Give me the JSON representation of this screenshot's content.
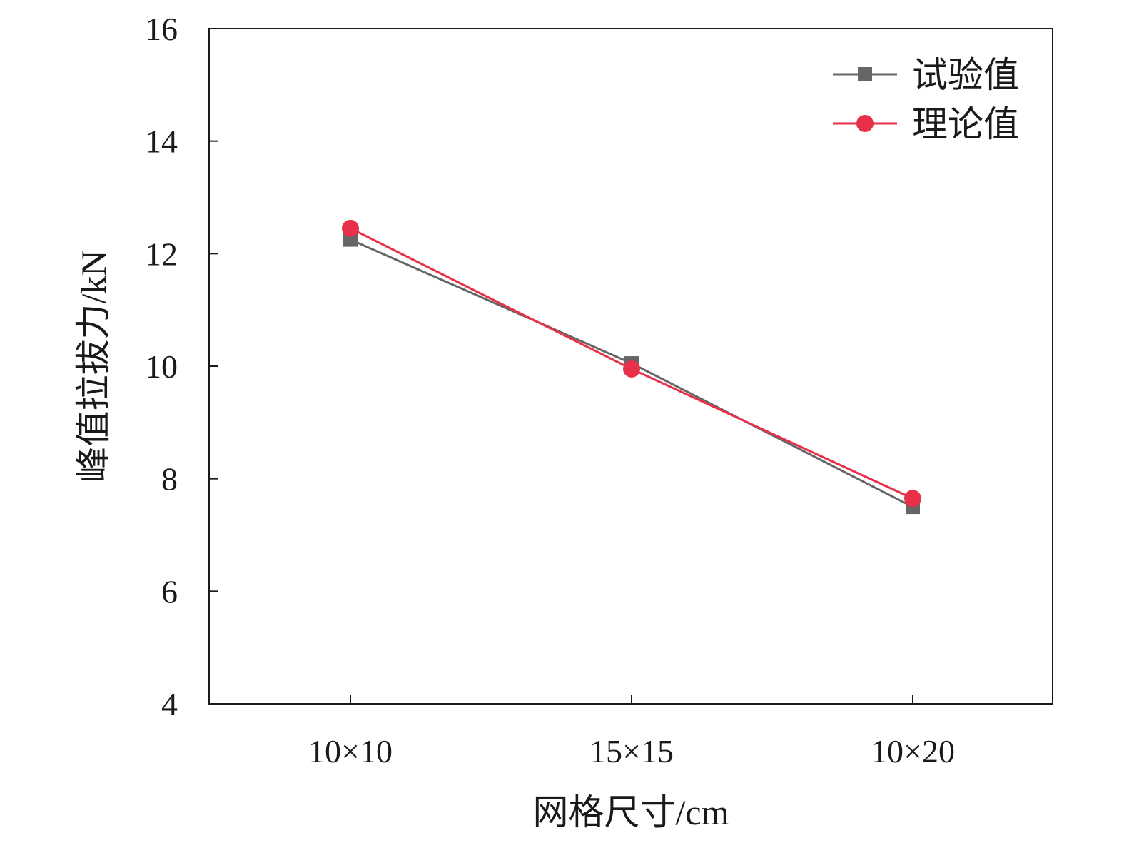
{
  "chart_data": {
    "type": "line",
    "categories": [
      "10×10",
      "15×15",
      "10×20"
    ],
    "series": [
      {
        "name": "试验值",
        "values": [
          12.25,
          10.05,
          7.5
        ],
        "color": "#666666",
        "marker": "square"
      },
      {
        "name": "理论值",
        "values": [
          12.45,
          9.95,
          7.65
        ],
        "color": "#e8304a",
        "marker": "circle"
      }
    ],
    "xlabel": "网格尺寸/cm",
    "ylabel": "峰值拉拔力/kN",
    "ylim": [
      4,
      16
    ],
    "yticks": [
      4,
      6,
      8,
      10,
      12,
      14,
      16
    ],
    "grid": false,
    "legend_position": "top-right"
  }
}
